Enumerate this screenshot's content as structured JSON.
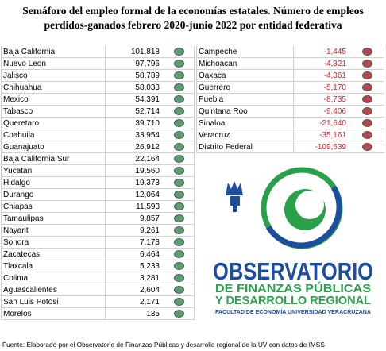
{
  "header": {
    "title": [
      "Semáforo del empleo formal  de la economías estatales. Número de empleos",
      "perdidos-ganados febrero 2020-junio 2022 por entidad federativa"
    ]
  },
  "gains": {
    "dot_color": "#5a9e6f",
    "rows": [
      [
        "Baja California",
        "101,818"
      ],
      [
        "Nuevo Leon",
        "97,796"
      ],
      [
        "Jalisco",
        "58,789"
      ],
      [
        "Chihuahua",
        "58,033"
      ],
      [
        "Mexico",
        "54,391"
      ],
      [
        "Tabasco",
        "52,714"
      ],
      [
        "Queretaro",
        "39,710"
      ],
      [
        "Coahuila",
        "33,954"
      ],
      [
        "Guanajuato",
        "26,912"
      ],
      [
        "Baja California Sur",
        "22,164"
      ],
      [
        "Yucatan",
        "19,560"
      ],
      [
        "Hidalgo",
        "19,373"
      ],
      [
        "Durango",
        "12,064"
      ],
      [
        "Chiapas",
        "11,593"
      ],
      [
        "Tamaulipas",
        "9,857"
      ],
      [
        "Nayarit",
        "9,261"
      ],
      [
        "Sonora",
        "7,173"
      ],
      [
        "Zacatecas",
        "6,464"
      ],
      [
        "Tlaxcala",
        "5,233"
      ],
      [
        "Colima",
        "3,281"
      ],
      [
        "Aguascalientes",
        "2,604"
      ],
      [
        "San Luis Potosi",
        "2,171"
      ],
      [
        "Morelos",
        "135"
      ]
    ]
  },
  "losses": {
    "dot_color": "#b5474f",
    "value_color": "#e0242c",
    "rows": [
      [
        "Campeche",
        "-1,445"
      ],
      [
        "Michoacan",
        "-4,321"
      ],
      [
        "Oaxaca",
        "-4,361"
      ],
      [
        "Guerrero",
        "-5,170"
      ],
      [
        "Puebla",
        "-8,735"
      ],
      [
        "Quintana Roo",
        "-9,406"
      ],
      [
        "Sinaloa",
        "-21,640"
      ],
      [
        "Veracruz",
        "-35,161"
      ],
      [
        "Distrito Federal",
        "-109,639"
      ]
    ]
  },
  "logo": {
    "name": "OBSERVATORIO",
    "line1": "DE FINANZAS PÚBLICAS",
    "line2": "Y DESARROLLO REGIONAL",
    "line3": "FACULTAD DE ECONOMÍA UNIVERSIDAD VERACRUZANA"
  },
  "footer": {
    "source": "Fuente: Elaborado por el Observatorio de Finanzas Públicas y desarrollo regional de la UV con datos de IMSS"
  }
}
